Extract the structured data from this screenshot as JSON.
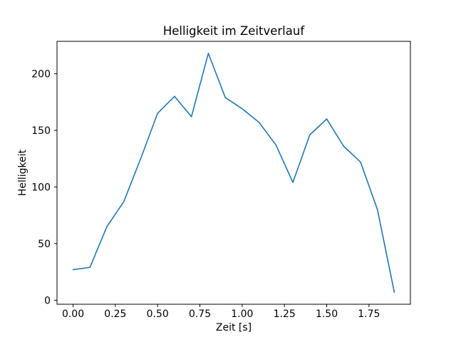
{
  "chart_data": {
    "type": "line",
    "title": "Helligkeit im Zeitverlauf",
    "xlabel": "Zeit [s]",
    "ylabel": "Helligkeit",
    "x": [
      0.0,
      0.1,
      0.2,
      0.3,
      0.4,
      0.5,
      0.6,
      0.7,
      0.8,
      0.9,
      1.0,
      1.1,
      1.2,
      1.3,
      1.4,
      1.5,
      1.6,
      1.7,
      1.8,
      1.9
    ],
    "y": [
      27,
      29,
      65,
      87,
      125,
      165,
      180,
      162,
      218,
      179,
      169,
      157,
      137,
      104,
      146,
      160,
      136,
      122,
      80,
      7
    ],
    "xlim": [
      -0.095,
      1.995
    ],
    "ylim": [
      -3.55,
      228.55
    ],
    "xtick_values": [
      0.0,
      0.25,
      0.5,
      0.75,
      1.0,
      1.25,
      1.5,
      1.75
    ],
    "xtick_labels": [
      "0.00",
      "0.25",
      "0.50",
      "0.75",
      "1.00",
      "1.25",
      "1.50",
      "1.75"
    ],
    "ytick_values": [
      0,
      50,
      100,
      150,
      200
    ],
    "ytick_labels": [
      "0",
      "50",
      "100",
      "150",
      "200"
    ],
    "line_color": "#1f77b4",
    "axis_color": "#000000",
    "background_color": "#ffffff",
    "grid": false,
    "legend": null
  }
}
